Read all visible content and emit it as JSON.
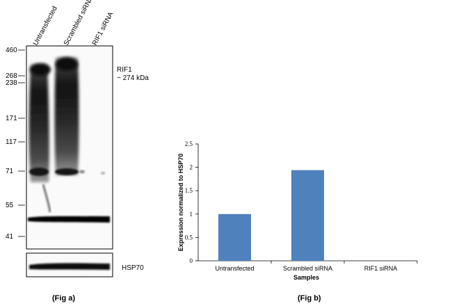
{
  "fig_a": {
    "caption": "(Fig a)",
    "lanes": [
      "Untransfected",
      "Scrambled siRNA",
      "RIF1 siRNA"
    ],
    "mw_markers": [
      "460",
      "268",
      "238",
      "171",
      "117",
      "71",
      "55",
      "41"
    ],
    "target_label": "RIF1",
    "target_size": "~ 274 kDa",
    "control_label": "HSP70"
  },
  "chart_data": {
    "type": "bar",
    "title": "",
    "caption": "(Fig b)",
    "categories": [
      "Untransfected",
      "Scrambled siRNA",
      "RIF1 siRNA"
    ],
    "values": [
      1.0,
      1.94,
      0.0
    ],
    "xlabel": "Samples",
    "ylabel": "Expression  normalized to HSP70",
    "ylim": [
      0,
      2.5
    ],
    "yticks": [
      "0",
      "0.5",
      "1",
      "1.5",
      "2",
      "2.5"
    ],
    "bar_color": "#4f81bd",
    "grid": false,
    "legend": "none"
  }
}
